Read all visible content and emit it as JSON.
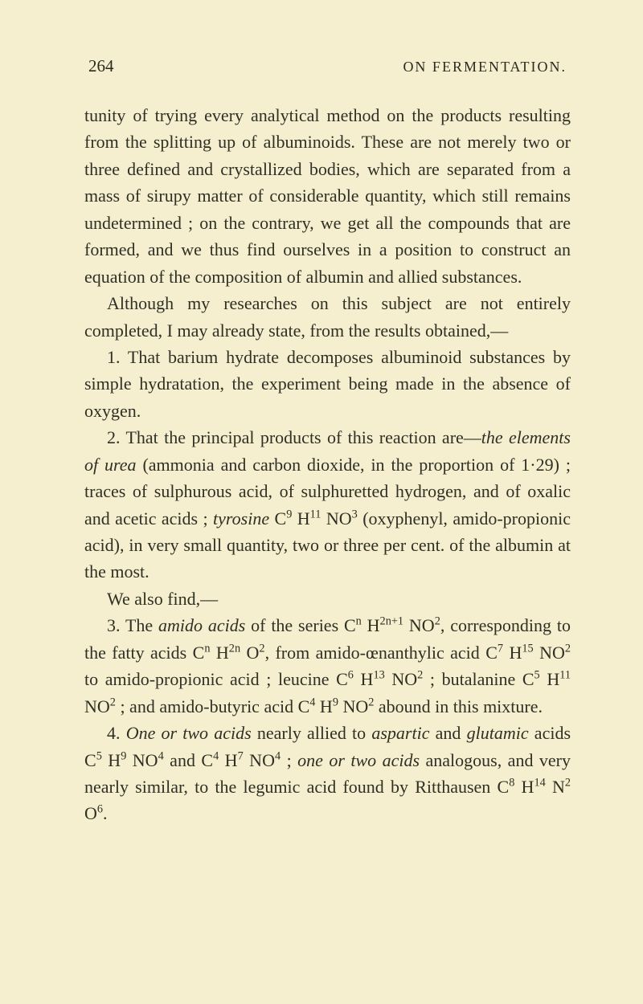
{
  "header": {
    "page_number": "264",
    "running_title": "ON FERMENTATION."
  },
  "paragraphs": {
    "p1_a": "tunity of trying every analytical method on the products resulting from the splitting up of albuminoids. These are not merely two or three defined and crystallized bodies, which are separated from a mass of sirupy matter of considerable quantity, which still remains undeter­mined ; on the contrary, we get all the compounds that are formed, and we thus find ourselves in a position to construct an equation of the composition of albumin and allied substances.",
    "p2": "Although my researches on this subject are not entirely completed, I may already state, from the results obtained,—",
    "p3": "1. That barium hydrate decomposes albuminoid sub­stances by simple hydratation, the experiment being made in the absence of oxygen.",
    "p4_a": "2. That the principal products of this reaction are—",
    "p4_b": "the elements of urea",
    "p4_c": " (ammonia and carbon dioxide, in the proportion of 1·29) ; traces of sulphurous acid, of sulphuretted hydrogen, and of oxalic and acetic acids ; ",
    "p4_d": "tyrosine",
    "p4_e": " C",
    "p4_sup1": "9",
    "p4_f": " H",
    "p4_sup2": "11",
    "p4_g": " NO",
    "p4_sup3": "3",
    "p4_h": " (oxyphenyl, amido-propionic acid), in very small quantity, two or three per cent. of the albumin at the most.",
    "p5": "We also find,—",
    "p6_a": "3. The ",
    "p6_b": "amido acids",
    "p6_c": " of the series C",
    "p6_sup1": "n",
    "p6_d": " H",
    "p6_sup2": "2n+1",
    "p6_e": " NO",
    "p6_sup3": "2",
    "p6_f": ", cor­responding to the fatty acids C",
    "p6_sup4": "n",
    "p6_g": " H",
    "p6_sup5": "2n",
    "p6_h": " O",
    "p6_sup6": "2",
    "p6_i": ", from amido-œnanthylic acid C",
    "p6_sup7": "7",
    "p6_j": " H",
    "p6_sup8": "15",
    "p6_k": " NO",
    "p6_sup9": "2",
    "p6_l": " to amido-propionic acid ; leucine C",
    "p6_sup10": "6",
    "p6_m": " H",
    "p6_sup11": "13",
    "p6_n": " NO",
    "p6_sup12": "2",
    "p6_o": " ; butalanine C",
    "p6_sup13": "5",
    "p6_p": " H",
    "p6_sup14": "11",
    "p6_q": " NO",
    "p6_sup15": "2",
    "p6_r": " ; and amido-butyric acid C",
    "p6_sup16": "4",
    "p6_s": " H",
    "p6_sup17": "9",
    "p6_t": " NO",
    "p6_sup18": "2",
    "p6_u": " abound in this mixture.",
    "p7_a": "4. ",
    "p7_b": "One or two acids",
    "p7_c": " nearly allied to ",
    "p7_d": "aspartic",
    "p7_e": " and ",
    "p7_f": "glutamic",
    "p7_g": " acids C",
    "p7_sup1": "5",
    "p7_h": " H",
    "p7_sup2": "9",
    "p7_i": " NO",
    "p7_sup3": "4",
    "p7_j": " and C",
    "p7_sup4": "4",
    "p7_k": " H",
    "p7_sup5": "7",
    "p7_l": " NO",
    "p7_sup6": "4",
    "p7_m": " ; ",
    "p7_n": "one or two acids",
    "p7_o": " analogous, and very nearly similar, to the legumic acid found by Ritthausen C",
    "p7_sup7": "8",
    "p7_p": " H",
    "p7_sup8": "14",
    "p7_q": " N",
    "p7_sup9": "2",
    "p7_r": " O",
    "p7_sup10": "6",
    "p7_s": "."
  }
}
